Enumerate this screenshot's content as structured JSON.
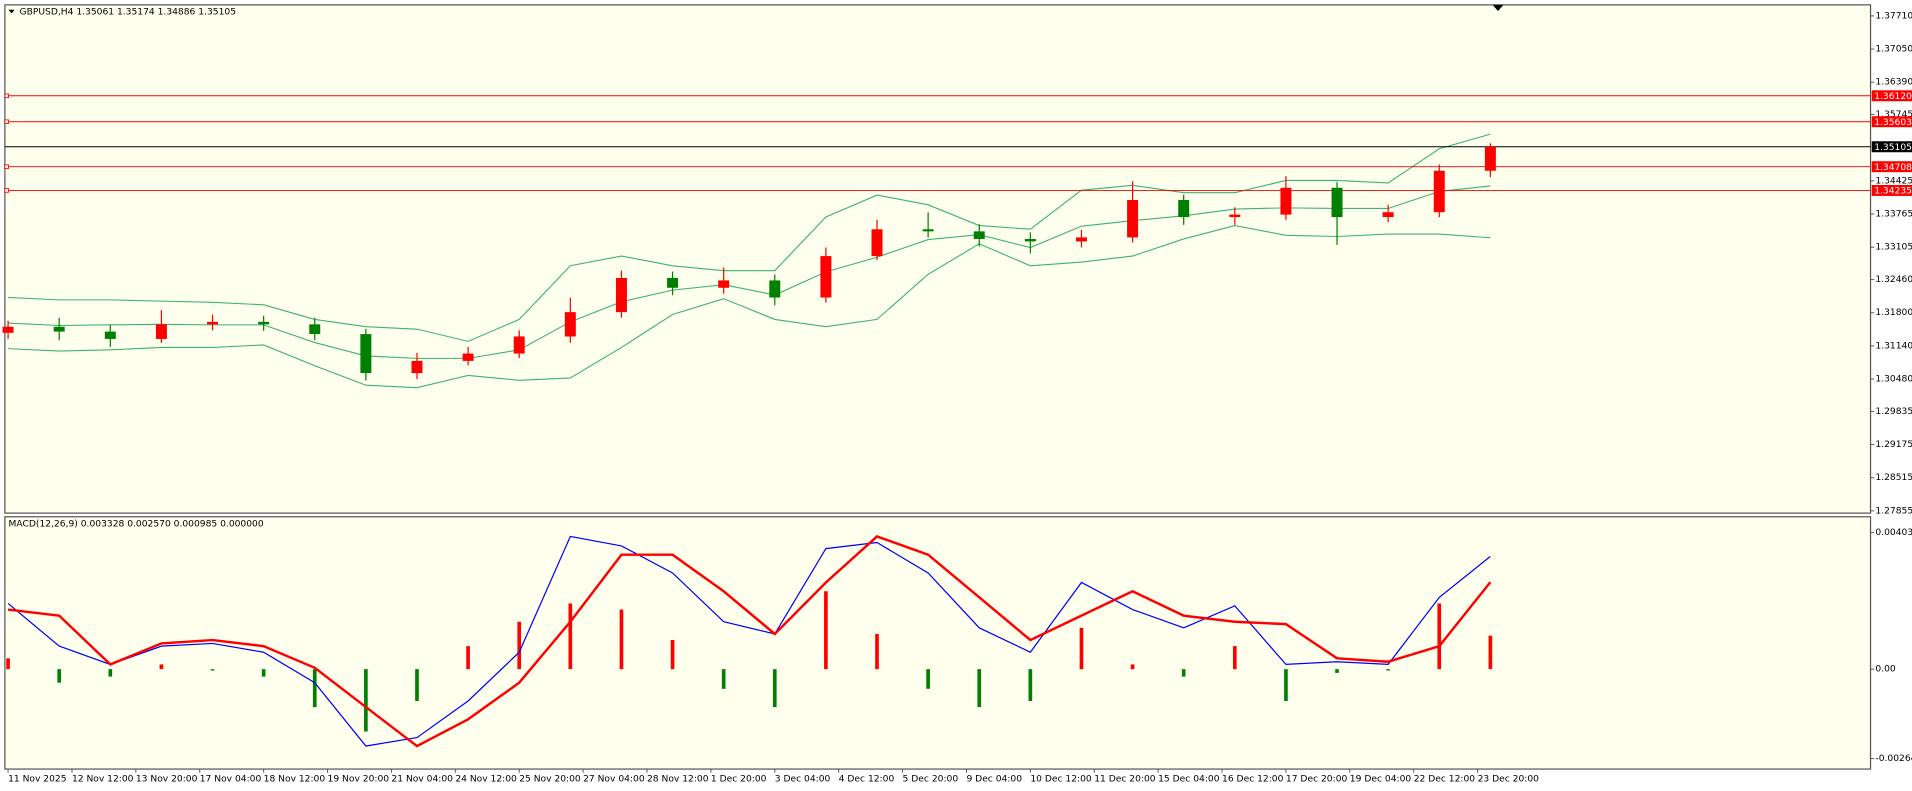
{
  "chart_data": [
    {
      "type": "candlestick",
      "title": "GBPUSD,H4  1.35061 1.35174 1.34886 1.35105",
      "x": [
        0,
        8,
        16,
        24,
        32,
        40,
        48,
        56,
        64,
        72,
        80,
        88,
        96,
        104,
        112,
        120,
        128,
        136,
        144,
        152,
        160,
        168,
        176,
        184,
        192,
        200,
        208,
        216,
        224,
        232
      ],
      "open": [
        1.314,
        1.31521,
        1.31424,
        1.31278,
        1.31569,
        1.31618,
        1.31569,
        1.31375,
        1.30598,
        1.30841,
        1.30987,
        1.31327,
        1.31812,
        1.32492,
        1.32297,
        1.32443,
        1.32103,
        1.32928,
        1.33462,
        1.3342,
        1.33268,
        1.3322,
        1.333,
        1.34045,
        1.33705,
        1.33754,
        1.34288,
        1.33705,
        1.33802,
        1.34627
      ],
      "high": [
        1.31641,
        1.317,
        1.3156,
        1.3185,
        1.3176,
        1.3174,
        1.317,
        1.3148,
        1.31,
        1.3112,
        1.3145,
        1.321,
        1.3264,
        1.3262,
        1.327,
        1.3256,
        1.331,
        1.3365,
        1.338,
        1.3356,
        1.334,
        1.3345,
        1.3442,
        1.3415,
        1.339,
        1.3452,
        1.344,
        1.3395,
        1.3475,
        1.35174
      ],
      "low": [
        1.3128,
        1.3125,
        1.3112,
        1.312,
        1.3145,
        1.3144,
        1.3125,
        1.3045,
        1.3048,
        1.3075,
        1.309,
        1.312,
        1.317,
        1.3215,
        1.3218,
        1.3195,
        1.32,
        1.3285,
        1.333,
        1.3312,
        1.3298,
        1.331,
        1.332,
        1.3355,
        1.3355,
        1.3365,
        1.3315,
        1.336,
        1.337,
        1.345
      ],
      "close": [
        1.31521,
        1.31424,
        1.31278,
        1.31569,
        1.31618,
        1.31569,
        1.31375,
        1.30598,
        1.30841,
        1.30987,
        1.31327,
        1.31812,
        1.32492,
        1.32297,
        1.32443,
        1.32103,
        1.32928,
        1.33462,
        1.3342,
        1.33268,
        1.3322,
        1.333,
        1.34045,
        1.33705,
        1.33754,
        1.34288,
        1.33705,
        1.33802,
        1.34627,
        1.35105
      ],
      "up_color": "#ff0000",
      "down_color": "#008000",
      "series": [
        {
          "color": "#3cb371",
          "values": [
            1.32104,
            1.32056,
            1.32056,
            1.32031,
            1.32007,
            1.31958,
            1.31667,
            1.31522,
            1.31473,
            1.3123,
            1.31667,
            1.32735,
            1.32929,
            1.32735,
            1.32638,
            1.32638,
            1.33706,
            1.34143,
            1.33949,
            1.33536,
            1.33463,
            1.3424,
            1.34337,
            1.34191,
            1.34191,
            1.34434,
            1.34434,
            1.34385,
            1.35065,
            1.35356
          ]
        },
        {
          "color": "#3cb371",
          "values": [
            1.31595,
            1.31546,
            1.31559,
            1.3157,
            1.31558,
            1.31558,
            1.31206,
            1.3094,
            1.30891,
            1.30891,
            1.31061,
            1.31619,
            1.32019,
            1.3225,
            1.32359,
            1.32153,
            1.32614,
            1.32905,
            1.33257,
            1.33354,
            1.33099,
            1.33524,
            1.33633,
            1.3373,
            1.33864,
            1.33888,
            1.33876,
            1.33876,
            1.34216,
            1.34325
          ]
        },
        {
          "color": "#3cb371",
          "values": [
            1.31085,
            1.31036,
            1.31061,
            1.31109,
            1.31109,
            1.31158,
            1.30745,
            1.30357,
            1.30308,
            1.30551,
            1.30454,
            1.30502,
            1.31109,
            1.31764,
            1.3208,
            1.31667,
            1.31522,
            1.31667,
            1.32565,
            1.33172,
            1.32735,
            1.32808,
            1.32929,
            1.33269,
            1.33536,
            1.33342,
            1.33318,
            1.33366,
            1.33366,
            1.33293
          ]
        }
      ],
      "hlines": {
        "values": [
          1.3612,
          1.35603,
          1.34708,
          1.34235
        ],
        "value_labels": [
          "1.36120",
          "1.35603",
          "1.34708",
          "1.34235"
        ],
        "color": "#ff0000"
      },
      "last_price": {
        "value": 1.35105,
        "label": "1.35105",
        "color": "#000000"
      },
      "xlim": [
        -0.5,
        291.5
      ],
      "ylim": [
        1.2781,
        1.3793
      ],
      "yticks": [
        {
          "value": 1.3771,
          "label": "1.37710"
        },
        {
          "value": 1.3705,
          "label": "1.37050"
        },
        {
          "value": 1.3639,
          "label": "1.36390"
        },
        1.35745,
        1.34425,
        1.33765,
        1.33105,
        {
          "value": 1.3246,
          "label": "1.32460"
        },
        {
          "value": 1.318,
          "label": "1.31800"
        },
        {
          "value": 1.3114,
          "label": "1.31140"
        },
        {
          "value": 1.3048,
          "label": "1.30480"
        },
        1.29835,
        1.29175,
        1.28515,
        1.27855
      ]
    },
    {
      "type": "macd",
      "title": "MACD(12,26,9) 0.003328 0.002570 0.000985 0.000000",
      "x": [
        0,
        8,
        16,
        24,
        32,
        40,
        48,
        56,
        64,
        72,
        80,
        88,
        96,
        104,
        112,
        120,
        128,
        136,
        144,
        152,
        160,
        168,
        176,
        184,
        192,
        200,
        208,
        216,
        224,
        232
      ],
      "histogram": {
        "up_color": "#ff0000",
        "down_color": "#008000",
        "values": [
          0.00032,
          -0.0004,
          -0.00022,
          0.00014,
          -4e-05,
          -0.00022,
          -0.00112,
          -0.00184,
          -0.00094,
          0.00068,
          0.0014,
          0.00194,
          0.00176,
          0.00086,
          -0.00058,
          -0.00112,
          0.0023,
          0.00104,
          -0.00058,
          -0.00112,
          -0.00094,
          0.00122,
          0.00014,
          -0.00022,
          0.00068,
          -0.00094,
          -0.00011,
          -4e-05,
          0.00194,
          0.00099
        ]
      },
      "series": [
        {
          "color": "#0000ff",
          "values": [
            0.00194,
            0.00068,
            0.00014,
            0.00068,
            0.00076,
            0.0005,
            -0.0004,
            -0.00227,
            -0.00202,
            -0.00094,
            0.0005,
            0.00392,
            0.00364,
            0.00284,
            0.0014,
            0.00104,
            0.00356,
            0.00374,
            0.00284,
            0.00122,
            0.0005,
            0.00256,
            0.00176,
            0.00122,
            0.00187,
            0.00014,
            0.00022,
            0.00014,
            0.00212,
            0.00333
          ]
        },
        {
          "color": "#ff0000",
          "values": [
            0.00176,
            0.00158,
            0.00014,
            0.00076,
            0.00086,
            0.00068,
            4e-05,
            -0.00112,
            -0.00227,
            -0.00148,
            -0.0004,
            0.0014,
            0.00338,
            0.00338,
            0.0023,
            0.00104,
            0.00256,
            0.00392,
            0.00338,
            0.00212,
            0.00086,
            0.00158,
            0.0023,
            0.00158,
            0.0014,
            0.00133,
            0.00032,
            0.00022,
            0.00068,
            0.00257
          ]
        }
      ],
      "xlim": [
        -0.5,
        291.5
      ],
      "ylim": [
        -0.00295,
        0.0045
      ],
      "yticks": [
        0.00403,
        {
          "value": 0,
          "label": "0.00"
        },
        -0.00264
      ],
      "xticks": [
        {
          "value": 0,
          "label": "11 Nov 2025"
        },
        {
          "value": 10,
          "label": "12 Nov 12:00"
        },
        {
          "value": 20,
          "label": "13 Nov 20:00"
        },
        {
          "value": 30,
          "label": "17 Nov 04:00"
        },
        {
          "value": 40,
          "label": "18 Nov 12:00"
        },
        {
          "value": 50,
          "label": "19 Nov 20:00"
        },
        {
          "value": 60,
          "label": "21 Nov 04:00"
        },
        {
          "value": 70,
          "label": "24 Nov 12:00"
        },
        {
          "value": 80,
          "label": "25 Nov 20:00"
        },
        {
          "value": 90,
          "label": "27 Nov 04:00"
        },
        {
          "value": 100,
          "label": "28 Nov 12:00"
        },
        {
          "value": 110,
          "label": "1 Dec 20:00"
        },
        {
          "value": 120,
          "label": "3 Dec 04:00"
        },
        {
          "value": 130,
          "label": "4 Dec 12:00"
        },
        {
          "value": 140,
          "label": "5 Dec 20:00"
        },
        {
          "value": 150,
          "label": "9 Dec 04:00"
        },
        {
          "value": 160,
          "label": "10 Dec 12:00"
        },
        {
          "value": 170,
          "label": "11 Dec 20:00"
        },
        {
          "value": 180,
          "label": "15 Dec 04:00"
        },
        {
          "value": 190,
          "label": "16 Dec 12:00"
        },
        {
          "value": 200,
          "label": "17 Dec 20:00"
        },
        {
          "value": 210,
          "label": "19 Dec 04:00"
        },
        {
          "value": 220,
          "label": "22 Dec 12:00"
        },
        {
          "value": 230,
          "label": "23 Dec 20:00"
        }
      ]
    }
  ]
}
